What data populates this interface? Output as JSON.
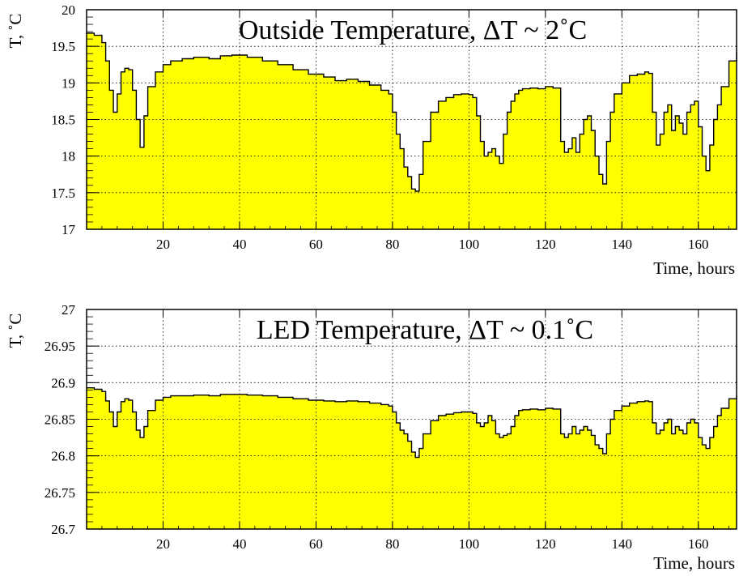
{
  "colors": {
    "fill": "#ffff00",
    "line": "#000000",
    "grid": "#000000",
    "background": "#ffffff"
  },
  "chart_data": [
    {
      "type": "area",
      "title": "Outside Temperature, ΔT ~ 2˚C",
      "xlabel": "Time, hours",
      "ylabel": "T, ˚C",
      "xlim": [
        0,
        170
      ],
      "ylim": [
        17,
        20
      ],
      "grid": true,
      "x_ticks": [
        "20",
        "40",
        "60",
        "80",
        "100",
        "120",
        "140",
        "160"
      ],
      "y_ticks": [
        "17",
        "17.5",
        "18",
        "18.5",
        "19",
        "19.5",
        "20"
      ],
      "series": [
        {
          "x": [
            0,
            2,
            4,
            5,
            6,
            7,
            8,
            9,
            10,
            11,
            12,
            13,
            14,
            15,
            16,
            18,
            20,
            22,
            25,
            28,
            32,
            35,
            38,
            42,
            46,
            50,
            54,
            58,
            62,
            65,
            68,
            71,
            74,
            77,
            79,
            80,
            81,
            82,
            83,
            84,
            85,
            86,
            87,
            88,
            90,
            92,
            94,
            96,
            98,
            100,
            101,
            102,
            103,
            104,
            105,
            106,
            107,
            108,
            109,
            110,
            111,
            112,
            113,
            114,
            116,
            118,
            120,
            122,
            124,
            125,
            126,
            127,
            128,
            129,
            130,
            131,
            132,
            133,
            134,
            135,
            136,
            137,
            138,
            140,
            142,
            144,
            146,
            147,
            148,
            149,
            150,
            151,
            152,
            153,
            154,
            155,
            156,
            157,
            158,
            159,
            160,
            161,
            162,
            163,
            164,
            165,
            166,
            168,
            170
          ],
          "y": [
            19.68,
            19.65,
            19.55,
            19.3,
            18.9,
            18.6,
            18.85,
            19.15,
            19.2,
            19.18,
            18.9,
            18.5,
            18.12,
            18.55,
            18.95,
            19.15,
            19.25,
            19.3,
            19.33,
            19.35,
            19.33,
            19.37,
            19.38,
            19.35,
            19.3,
            19.25,
            19.18,
            19.12,
            19.08,
            19.03,
            19.05,
            19.02,
            18.97,
            18.9,
            18.85,
            18.6,
            18.3,
            18.1,
            17.85,
            17.72,
            17.55,
            17.52,
            17.75,
            18.2,
            18.6,
            18.75,
            18.8,
            18.84,
            18.85,
            18.84,
            18.8,
            18.55,
            18.2,
            18.0,
            18.05,
            18.1,
            18.0,
            17.9,
            18.3,
            18.6,
            18.75,
            18.85,
            18.9,
            18.92,
            18.93,
            18.92,
            18.95,
            18.93,
            18.2,
            18.05,
            18.1,
            18.25,
            18.05,
            18.3,
            18.5,
            18.55,
            18.35,
            18.0,
            17.75,
            17.62,
            18.2,
            18.6,
            18.85,
            19.0,
            19.1,
            19.12,
            19.15,
            19.13,
            18.6,
            18.15,
            18.3,
            18.6,
            18.7,
            18.35,
            18.55,
            18.45,
            18.3,
            18.6,
            18.7,
            18.75,
            18.4,
            18.0,
            17.8,
            18.15,
            18.5,
            18.7,
            18.95,
            19.3,
            19.42
          ],
          "step": true
        }
      ]
    },
    {
      "type": "area",
      "title": "LED Temperature, ΔT ~ 0.1˚C",
      "xlabel": "Time, hours",
      "ylabel": "T, ˚C",
      "xlim": [
        0,
        170
      ],
      "ylim": [
        26.7,
        27
      ],
      "grid": true,
      "x_ticks": [
        "20",
        "40",
        "60",
        "80",
        "100",
        "120",
        "140",
        "160"
      ],
      "y_ticks": [
        "26.7",
        "26.75",
        "26.8",
        "26.85",
        "26.9",
        "26.95",
        "27"
      ],
      "series": [
        {
          "x": [
            0,
            2,
            4,
            5,
            6,
            7,
            8,
            9,
            10,
            11,
            12,
            13,
            14,
            15,
            16,
            18,
            20,
            22,
            25,
            28,
            32,
            35,
            38,
            42,
            46,
            50,
            54,
            58,
            62,
            65,
            68,
            71,
            74,
            77,
            79,
            80,
            81,
            82,
            83,
            84,
            85,
            86,
            87,
            88,
            90,
            92,
            94,
            96,
            98,
            100,
            101,
            102,
            103,
            104,
            105,
            106,
            107,
            108,
            109,
            110,
            111,
            112,
            113,
            114,
            116,
            118,
            120,
            122,
            124,
            125,
            126,
            127,
            128,
            129,
            130,
            131,
            132,
            133,
            134,
            135,
            136,
            137,
            138,
            140,
            142,
            144,
            146,
            147,
            148,
            149,
            150,
            151,
            152,
            153,
            154,
            155,
            156,
            157,
            158,
            159,
            160,
            161,
            162,
            163,
            164,
            165,
            166,
            168,
            170
          ],
          "y": [
            26.893,
            26.891,
            26.888,
            26.875,
            26.86,
            26.84,
            26.86,
            26.874,
            26.878,
            26.876,
            26.86,
            26.835,
            26.825,
            26.84,
            26.862,
            26.876,
            26.88,
            26.882,
            26.882,
            26.883,
            26.882,
            26.884,
            26.884,
            26.883,
            26.882,
            26.88,
            26.878,
            26.876,
            26.875,
            26.874,
            26.875,
            26.874,
            26.872,
            26.87,
            26.868,
            26.86,
            26.845,
            26.835,
            26.83,
            26.82,
            26.805,
            26.798,
            26.81,
            26.83,
            26.848,
            26.855,
            26.857,
            26.859,
            26.86,
            26.86,
            26.858,
            26.845,
            26.84,
            26.845,
            26.855,
            26.848,
            26.83,
            26.825,
            26.828,
            26.83,
            26.84,
            26.855,
            26.862,
            26.863,
            26.864,
            26.863,
            26.865,
            26.864,
            26.83,
            26.825,
            26.83,
            26.84,
            26.83,
            26.835,
            26.84,
            26.835,
            26.828,
            26.815,
            26.81,
            26.803,
            26.83,
            26.85,
            26.862,
            26.868,
            26.872,
            26.874,
            26.875,
            26.874,
            26.845,
            26.83,
            26.835,
            26.845,
            26.85,
            26.83,
            26.84,
            26.835,
            26.83,
            26.845,
            26.85,
            26.845,
            26.825,
            26.815,
            26.81,
            26.825,
            26.84,
            26.855,
            26.865,
            26.878,
            26.882
          ],
          "step": true
        }
      ]
    }
  ]
}
